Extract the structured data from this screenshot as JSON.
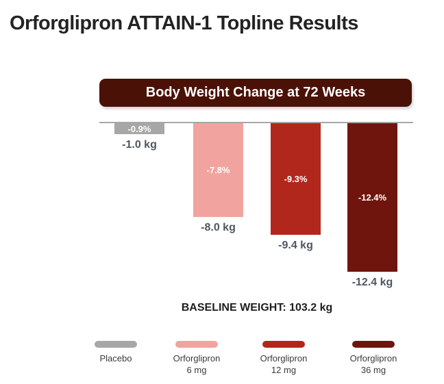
{
  "page": {
    "title": "Orforglipron ATTAIN-1 Topline Results"
  },
  "chart": {
    "header": "Body Weight Change at 72 Weeks",
    "baseline": "BASELINE WEIGHT: 103.2 kg"
  },
  "chart_data": {
    "type": "bar",
    "title": "Body Weight Change at 72 Weeks",
    "categories": [
      "Placebo",
      "Orforglipron 6 mg",
      "Orforglipron 12 mg",
      "Orforglipron 36 mg"
    ],
    "series": [
      {
        "name": "Body weight change (%)",
        "values": [
          -0.9,
          -7.8,
          -9.3,
          -12.4
        ]
      },
      {
        "name": "Body weight change (kg)",
        "values": [
          -1.0,
          -8.0,
          -9.4,
          -12.4
        ]
      }
    ],
    "baseline_weight_kg": 103.2,
    "ylim": [
      -13,
      0
    ],
    "grid": false,
    "legend_position": "bottom",
    "bar_colors": [
      "#a7a7a7",
      "#f1a49f",
      "#b2271b",
      "#6f150e"
    ],
    "groups": [
      {
        "pct_label": "-0.9%",
        "kg_label": "-1.0 kg",
        "pct_abs": 0.9,
        "color": "#a7a7a7",
        "legend_line1": "Placebo",
        "legend_line2": ""
      },
      {
        "pct_label": "-7.8%",
        "kg_label": "-8.0 kg",
        "pct_abs": 7.8,
        "color": "#f1a49f",
        "legend_line1": "Orforglipron",
        "legend_line2": "6 mg"
      },
      {
        "pct_label": "-9.3%",
        "kg_label": "-9.4 kg",
        "pct_abs": 9.3,
        "color": "#b2271b",
        "legend_line1": "Orforglipron",
        "legend_line2": "12 mg"
      },
      {
        "pct_label": "-12.4%",
        "kg_label": "-12.4 kg",
        "pct_abs": 12.4,
        "color": "#6f150e",
        "legend_line1": "Orforglipron",
        "legend_line2": "36 mg"
      }
    ]
  },
  "colors": {
    "banner_bg": "#4a1207",
    "banner_text": "#ffffff",
    "axis_line": "#a6a6a6",
    "title_text": "#232323",
    "kg_label_text": "#4f565f",
    "baseline_text": "#1e1e1e",
    "legend_text": "#3a3a3a",
    "background": "#ffffff"
  }
}
